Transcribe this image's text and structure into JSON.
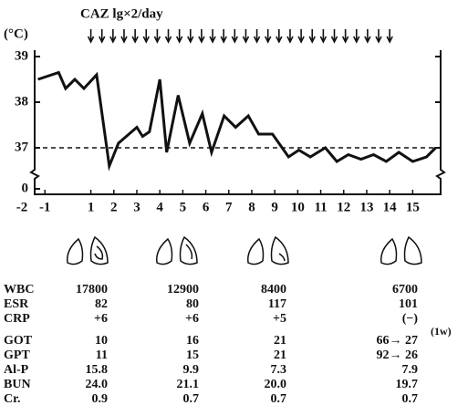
{
  "chart_data": {
    "type": "line",
    "title": "CAZ lg×2/day",
    "y_unit": "(°C)",
    "dosing": {
      "from_day": 1,
      "to_day": 14,
      "per_day": 2
    },
    "x": [
      -1.3,
      -0.4,
      -0.1,
      0.3,
      0.7,
      1.25,
      1.8,
      2.2,
      3.0,
      3.25,
      3.55,
      4.0,
      4.3,
      4.8,
      5.3,
      5.85,
      6.25,
      6.8,
      7.3,
      7.85,
      8.3,
      8.9,
      9.6,
      10.05,
      10.55,
      11.2,
      11.7,
      12.2,
      12.75,
      13.3,
      13.85,
      14.4,
      15.0,
      15.6,
      16.0
    ],
    "values": [
      38.5,
      38.65,
      38.3,
      38.5,
      38.3,
      38.6,
      36.6,
      37.1,
      37.45,
      37.25,
      37.35,
      38.5,
      36.9,
      38.15,
      37.1,
      37.75,
      36.9,
      37.7,
      37.45,
      37.7,
      37.3,
      37.3,
      36.8,
      36.95,
      36.8,
      37.0,
      36.7,
      36.85,
      36.75,
      36.85,
      36.7,
      36.9,
      36.7,
      36.8,
      37.0
    ],
    "color": "#111111",
    "reference_line": 37,
    "xlim": [
      -2,
      16.2
    ],
    "xticks": [
      -2,
      -1,
      1,
      2,
      3,
      4,
      5,
      6,
      7,
      8,
      9,
      10,
      11,
      12,
      13,
      14,
      15
    ],
    "ylim": [
      36.3,
      39.14
    ],
    "yticks": [
      37,
      38,
      39
    ],
    "ybreak_tick": 0
  },
  "table": {
    "rows": [
      [
        "WBC",
        "17800",
        "12900",
        "8400",
        "6700"
      ],
      [
        "ESR",
        "82",
        "80",
        "117",
        "101"
      ],
      [
        "CRP",
        "+6",
        "+6",
        "+5",
        "(−)"
      ],
      [
        "GOT",
        "10",
        "16",
        "21",
        "66→ 27"
      ],
      [
        "GPT",
        "11",
        "15",
        "21",
        "92→ 26"
      ],
      [
        "Al-P",
        "15.8",
        "9.9",
        "7.3",
        "7.9"
      ],
      [
        "BUN",
        "24.0",
        "21.1",
        "20.0",
        "19.7"
      ],
      [
        "Cr.",
        "0.9",
        "0.7",
        "0.7",
        "0.7"
      ]
    ],
    "note": "(1w)"
  }
}
